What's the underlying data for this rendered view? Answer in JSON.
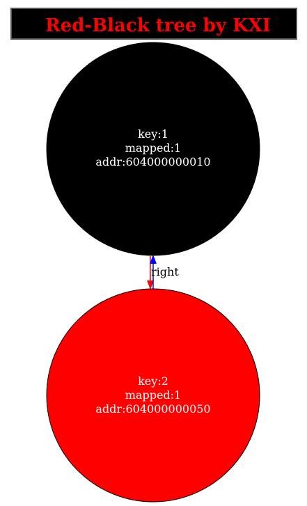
{
  "title": {
    "text": "Red-Black tree by KXI",
    "background": "#000000",
    "text_color": "#ff0000",
    "border_color": "#555555"
  },
  "nodes": [
    {
      "color_name": "black",
      "fill": "#000000",
      "text_color": "#ffffff",
      "key_line": "key:1",
      "mapped_line": "mapped:1",
      "addr_line": "addr:604000000010"
    },
    {
      "color_name": "red",
      "fill": "#ff0000",
      "text_color": "#ffffff",
      "key_line": "key:2",
      "mapped_line": "mapped:1",
      "addr_line": "addr:604000000050"
    }
  ],
  "edges": [
    {
      "from": 0,
      "to": 1,
      "label": "right",
      "forward_color": "#ff0000",
      "back_color": "#0000ff"
    }
  ]
}
